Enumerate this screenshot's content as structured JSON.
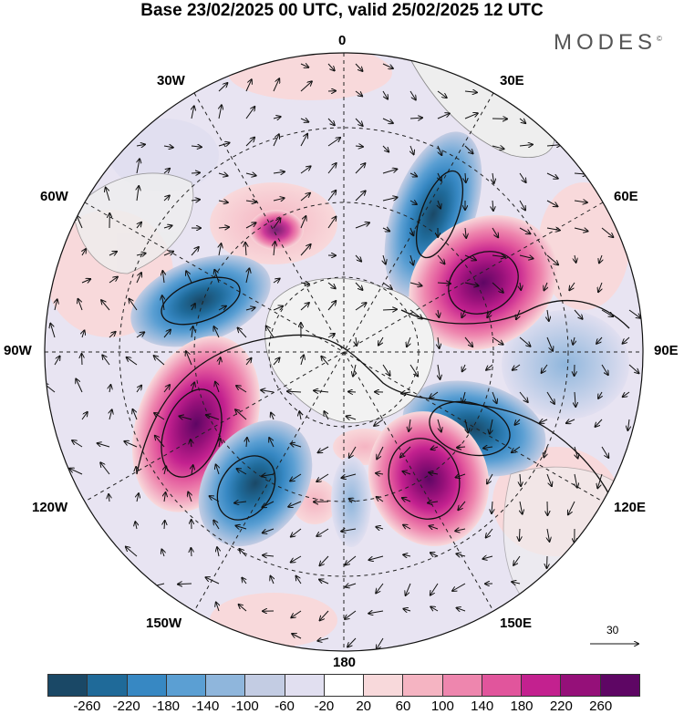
{
  "title": "Base 23/02/2025 00 UTC, valid 25/02/2025 12 UTC",
  "brand": "MODES",
  "brand_mark": "©",
  "longitude_labels": {
    "top": "0",
    "bottom": "180",
    "left": "90W",
    "right": "90E",
    "upper_left": "30W",
    "upper_right": "30E",
    "mid_upper_left": "60W",
    "mid_upper_right": "60E",
    "mid_lower_left": "120W",
    "mid_lower_right": "120E",
    "lower_left": "150W",
    "lower_right": "150E"
  },
  "reference_vector": "30",
  "colorbar": {
    "colors": [
      "#1a4866",
      "#1f6a99",
      "#3788c3",
      "#5b9fd3",
      "#8fb6dc",
      "#c3cce3",
      "#e1dff0",
      "#ffffff",
      "#f8d9db",
      "#f5b4c2",
      "#ee86ae",
      "#e1559c",
      "#c3218f",
      "#951079",
      "#5e0664"
    ],
    "ticks": [
      "-260",
      "-220",
      "-180",
      "-140",
      "-100",
      "-60",
      "-20",
      "20",
      "60",
      "100",
      "140",
      "180",
      "220",
      "260"
    ]
  }
}
